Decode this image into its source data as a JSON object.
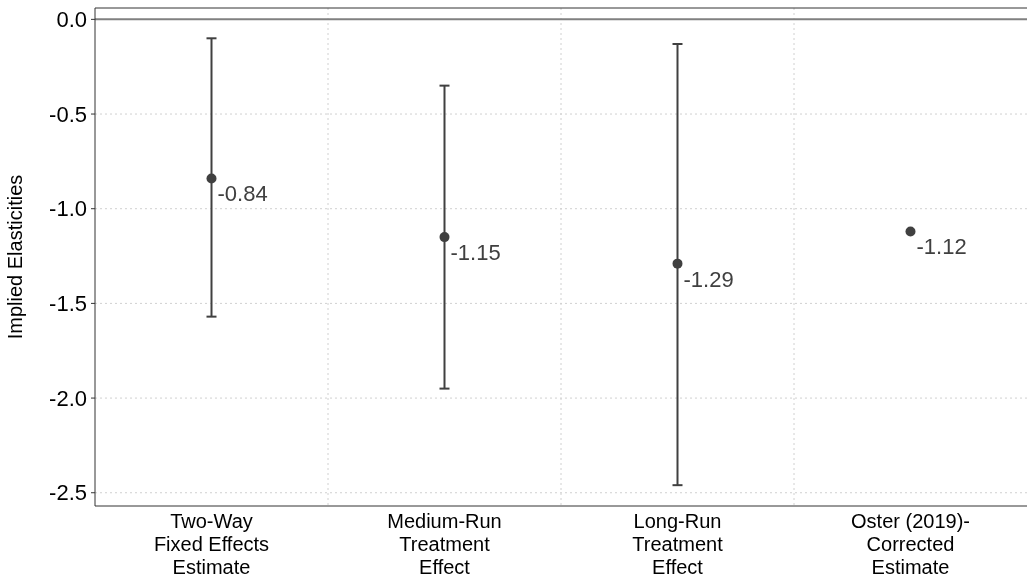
{
  "chart_data": {
    "type": "scatter",
    "ylabel": "Implied Elasticities",
    "categories": [
      "Two-Way\nFixed Effects\nEstimate",
      "Medium-Run\nTreatment\nEffect",
      "Long-Run\nTreatment\nEffect",
      "Oster (2019)-\nCorrected\nEstimate"
    ],
    "values": [
      -0.84,
      -1.15,
      -1.29,
      -1.12
    ],
    "errors": [
      [
        -1.57,
        -0.1
      ],
      [
        -1.95,
        -0.35
      ],
      [
        -2.46,
        -0.13
      ],
      null
    ],
    "color": "#404040",
    "marker": "circle",
    "data_labels": true,
    "grid": true,
    "ylim": [
      -2.57,
      0.06
    ],
    "yticks": [
      {
        "value": 0,
        "label": "0.0"
      },
      -0.5,
      {
        "value": -1,
        "label": "-1.0"
      },
      -1.5,
      {
        "value": -2,
        "label": "-2.0"
      },
      -2.5
    ],
    "ref_lines": [
      {
        "axis": "y",
        "value": 0,
        "label": null,
        "color": "#808080"
      }
    ]
  }
}
